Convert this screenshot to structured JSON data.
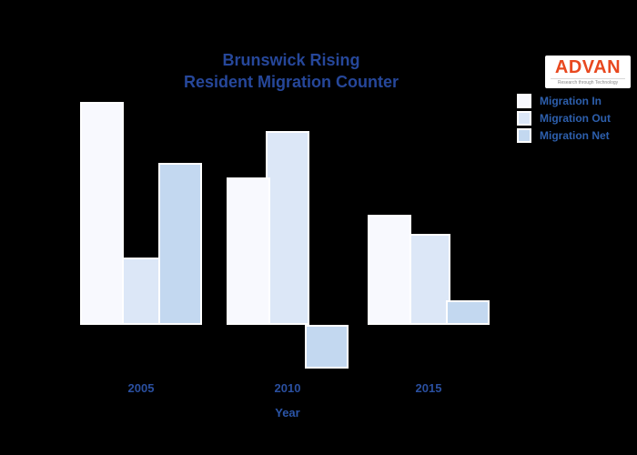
{
  "page": {
    "background": "#000000"
  },
  "header": {
    "title_line1": "Brunswick Rising",
    "title_line2": "Resident Migration Counter",
    "title_color": "#26479a"
  },
  "logo": {
    "text": "ADVAN",
    "tagline": "Research through Technology",
    "text_color": "#e8481f",
    "background": "#ffffff"
  },
  "legend": {
    "label_color": "#2d5fad",
    "items": [
      {
        "label": "Migration In",
        "color": "#f8f9fe"
      },
      {
        "label": "Migration Out",
        "color": "#dce7f7"
      },
      {
        "label": "Migration Net",
        "color": "#c3d8f0"
      }
    ]
  },
  "axis": {
    "xlabel": "Year",
    "tick_color": "#2a4f9f",
    "xlabel_color": "#2b55a8"
  },
  "chart_data": {
    "type": "bar",
    "title": "Brunswick Rising — Resident Migration Counter",
    "categories": [
      "2005",
      "2010",
      "2015"
    ],
    "series": [
      {
        "name": "Migration In",
        "color": "#f8f9fe",
        "values": [
          2450,
          1620,
          1210
        ]
      },
      {
        "name": "Migration Out",
        "color": "#dce7f7",
        "values": [
          740,
          2130,
          1000
        ]
      },
      {
        "name": "Migration Net",
        "color": "#c3d8f0",
        "values": [
          1780,
          -480,
          270
        ]
      }
    ],
    "xlabel": "Year",
    "ylabel": "",
    "ylim": [
      -600,
      2600
    ],
    "grid": false,
    "y_axis_visible": false,
    "legend_position": "upper right",
    "background": "#000000",
    "bar_edge_color": "#ffffff"
  }
}
